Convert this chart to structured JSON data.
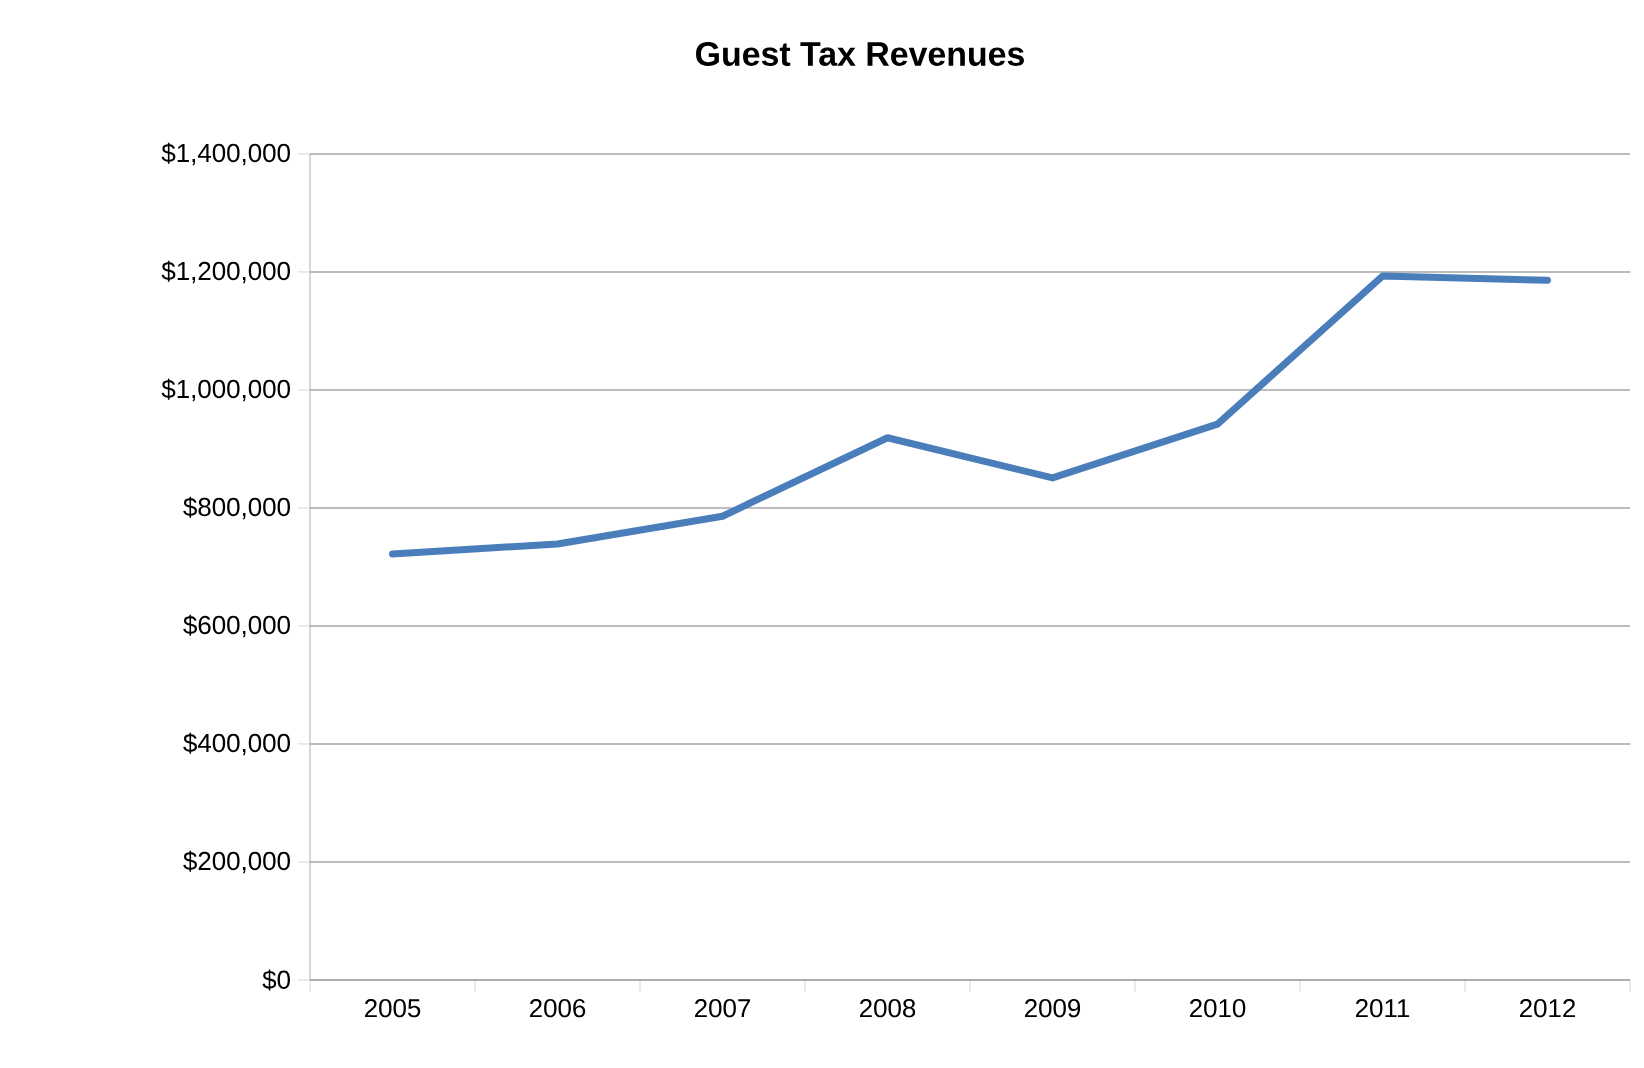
{
  "chart_data": {
    "type": "line",
    "title": "Guest Tax Revenues",
    "categories": [
      "2005",
      "2006",
      "2007",
      "2008",
      "2009",
      "2010",
      "2011",
      "2012"
    ],
    "values": [
      722000,
      739000,
      786000,
      919000,
      851000,
      942000,
      1193000,
      1186000
    ],
    "color": "#4a7ebb",
    "ylim": [
      0,
      1400000
    ],
    "yticks": [
      {
        "value": 0,
        "label": "$0"
      },
      {
        "value": 200000,
        "label": "$200,000"
      },
      {
        "value": 400000,
        "label": "$400,000"
      },
      {
        "value": 600000,
        "label": "$600,000"
      },
      {
        "value": 800000,
        "label": "$800,000"
      },
      {
        "value": 1000000,
        "label": "$1,000,000"
      },
      {
        "value": 1200000,
        "label": "$1,200,000"
      },
      {
        "value": 1400000,
        "label": "$1,400,000"
      }
    ],
    "grid": "y"
  }
}
